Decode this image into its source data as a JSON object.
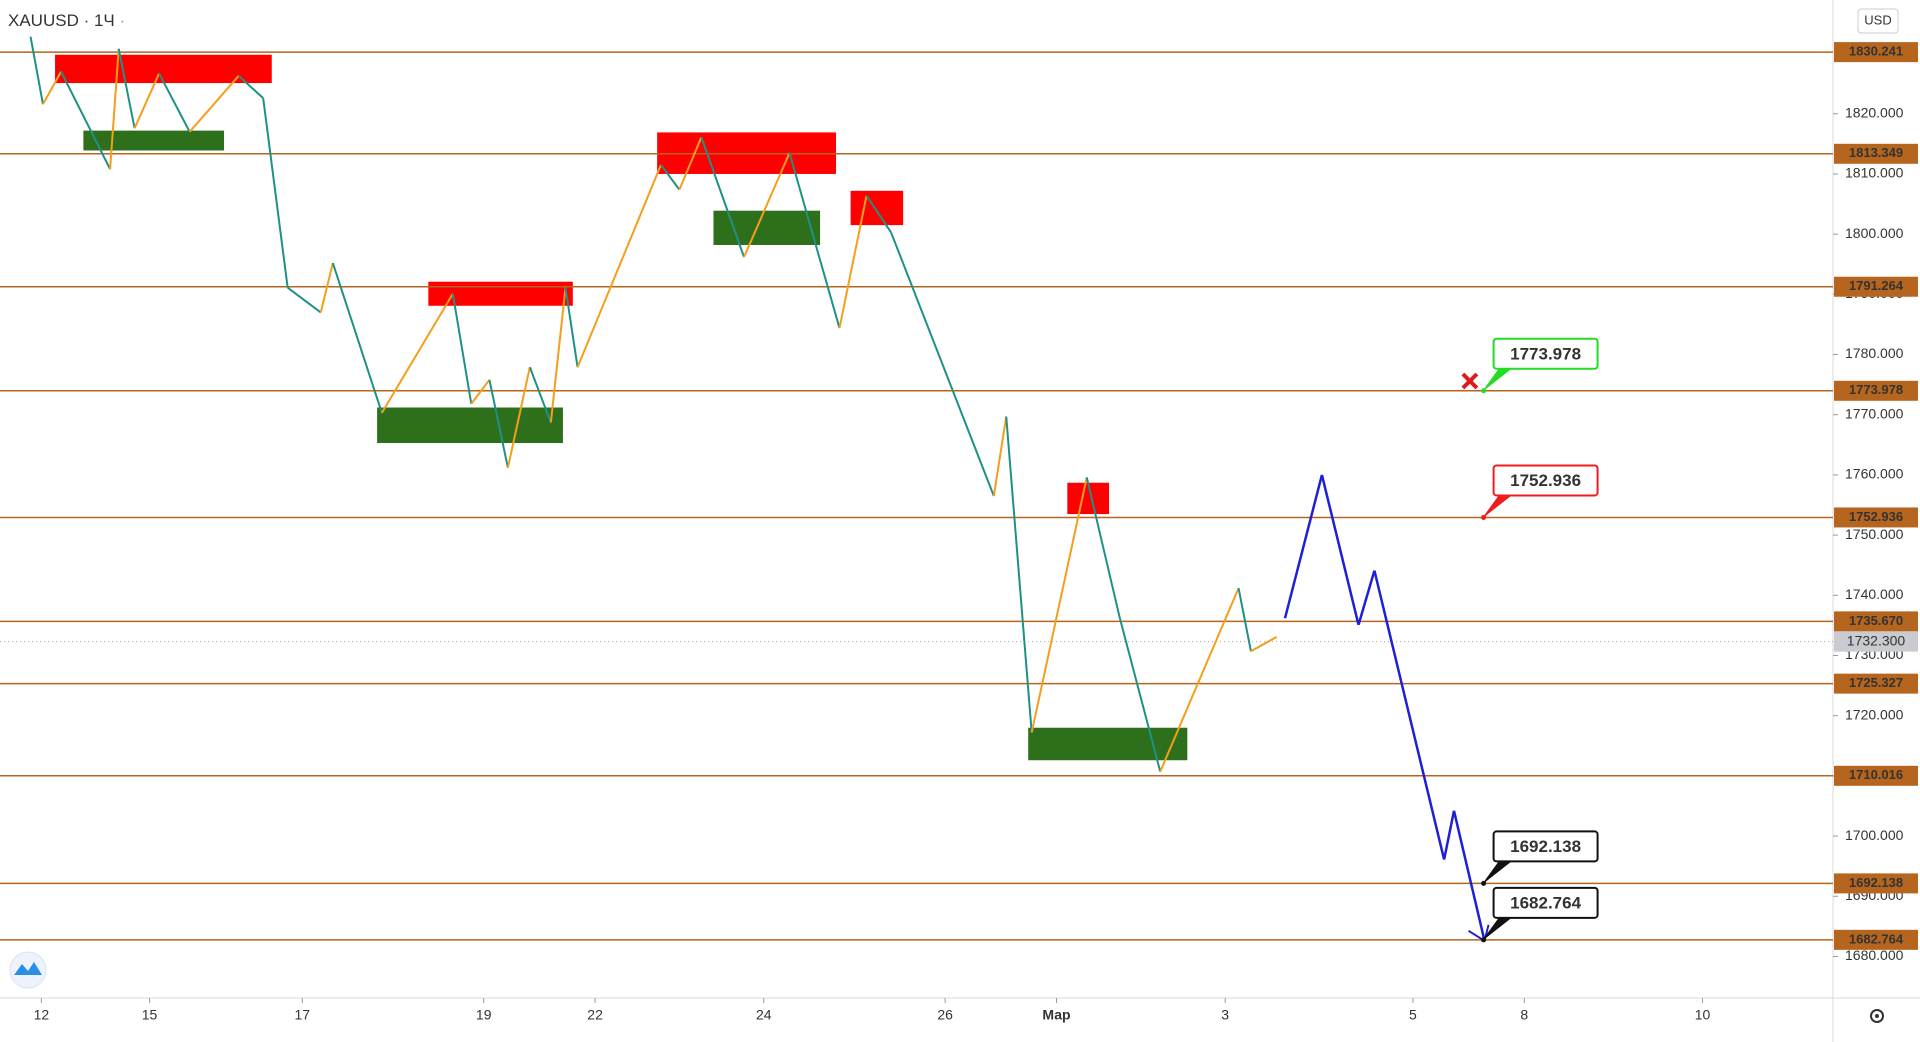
{
  "chart_data": {
    "type": "line",
    "title": "XAUUSD",
    "subtitle": "1Ч",
    "currency": "USD",
    "xlim": [
      0,
      576
    ],
    "ylim": [
      1673.1,
      1838.9
    ],
    "xticks": [
      {
        "value": 13,
        "label": "12"
      },
      {
        "value": 47,
        "label": "15"
      },
      {
        "value": 95,
        "label": "17"
      },
      {
        "value": 152,
        "label": "19"
      },
      {
        "value": 187,
        "label": "22"
      },
      {
        "value": 240,
        "label": "24"
      },
      {
        "value": 297,
        "label": "26"
      },
      {
        "value": 332,
        "label": "Мар"
      },
      {
        "value": 385,
        "label": "3"
      },
      {
        "value": 444,
        "label": "5"
      },
      {
        "value": 479,
        "label": "8"
      },
      {
        "value": 535,
        "label": "10"
      }
    ],
    "yticks": [
      {
        "value": 1680,
        "label": "1680.000"
      },
      {
        "value": 1690,
        "label": "1690.000"
      },
      {
        "value": 1700,
        "label": "1700.000"
      },
      {
        "value": 1710,
        "label": "1710.000"
      },
      {
        "value": 1720,
        "label": "1720.000"
      },
      {
        "value": 1730,
        "label": "1730.000"
      },
      {
        "value": 1740,
        "label": "1740.000"
      },
      {
        "value": 1750,
        "label": "1750.000"
      },
      {
        "value": 1760,
        "label": "1760.000"
      },
      {
        "value": 1770,
        "label": "1770.000"
      },
      {
        "value": 1780,
        "label": "1780.000"
      },
      {
        "value": 1790,
        "label": "1790.000"
      },
      {
        "value": 1800,
        "label": "1800.000"
      },
      {
        "value": 1810,
        "label": "1810.000"
      },
      {
        "value": 1820,
        "label": "1820.000"
      }
    ],
    "series": [
      {
        "color": "#f59e1b",
        "down_color": "#1e9187",
        "x": [
          9.6,
          13.5,
          19.2,
          34.6,
          37.3,
          42.3,
          50,
          59.6,
          75,
          82.7,
          90.4,
          100.8,
          104.6,
          120,
          142.3,
          148.1,
          153.8,
          159.6,
          166.5,
          173.1,
          177.7,
          181.5,
          207.7,
          213.5,
          220.4,
          233.8,
          248.1,
          263.8,
          272.3,
          280,
          312.3,
          316.2,
          324.2,
          341.5,
          351.9,
          364.6,
          389.2,
          393.1,
          401.2
        ],
        "values": [
          1832.8,
          1821.6,
          1827,
          1810.8,
          1830.8,
          1817.6,
          1826.7,
          1817,
          1826.3,
          1822.6,
          1791.1,
          1787,
          1795.2,
          1770.3,
          1790.1,
          1771.8,
          1775.8,
          1761.2,
          1777.9,
          1768.7,
          1791.1,
          1777.9,
          1811.5,
          1807.4,
          1816.1,
          1796.2,
          1813.5,
          1784.4,
          1806.4,
          1800.3,
          1756.5,
          1769.7,
          1717.2,
          1759.6,
          1736.2,
          1710.7,
          1741.2,
          1730.7,
          1733.1
        ]
      },
      {
        "color": "#1f1fd6",
        "x": [
          403.8,
          415.4,
          426.9,
          431.9,
          453.8,
          456.9,
          466.5
        ],
        "values": [
          1736.2,
          1760,
          1735.1,
          1744.1,
          1696.1,
          1704.2,
          1682.6
        ]
      }
    ],
    "zones": [
      {
        "x0": 17.3,
        "x1": 85.4,
        "top": 1829.8,
        "bottom": 1825.1,
        "color": "#ff0000"
      },
      {
        "x0": 134.6,
        "x1": 180,
        "top": 1792.1,
        "bottom": 1788.1,
        "color": "#ff0000"
      },
      {
        "x0": 206.5,
        "x1": 262.7,
        "top": 1816.9,
        "bottom": 1810,
        "color": "#ff0000"
      },
      {
        "x0": 267.3,
        "x1": 283.8,
        "top": 1807.2,
        "bottom": 1801.5,
        "color": "#ff0000"
      },
      {
        "x0": 335.4,
        "x1": 348.5,
        "top": 1758.7,
        "bottom": 1753.5,
        "color": "#ff0000"
      },
      {
        "x0": 26.2,
        "x1": 70.4,
        "top": 1817.2,
        "bottom": 1813.9,
        "color": "#2e6f1c"
      },
      {
        "x0": 118.5,
        "x1": 176.9,
        "top": 1771.2,
        "bottom": 1765.3,
        "color": "#2e6f1c"
      },
      {
        "x0": 224.2,
        "x1": 257.7,
        "top": 1803.9,
        "bottom": 1798.2,
        "color": "#2e6f1c"
      },
      {
        "x0": 323.1,
        "x1": 373.1,
        "top": 1718,
        "bottom": 1712.6,
        "color": "#2e6f1c"
      }
    ],
    "level_color": "#b5651d",
    "levels": [
      {
        "value": 1830.241,
        "label": "1830.241"
      },
      {
        "value": 1813.349,
        "label": "1813.349"
      },
      {
        "value": 1791.264,
        "label": "1791.264"
      },
      {
        "value": 1773.978,
        "label": "1773.978"
      },
      {
        "value": 1752.936,
        "label": "1752.936"
      },
      {
        "value": 1735.67,
        "label": "1735.670"
      },
      {
        "value": 1725.327,
        "label": "1725.327"
      },
      {
        "value": 1710.016,
        "label": "1710.016"
      },
      {
        "value": 1692.138,
        "label": "1692.138"
      },
      {
        "value": 1682.764,
        "label": "1682.764"
      }
    ],
    "current_price": {
      "value": 1732.3,
      "label": "1732.300"
    },
    "callouts": [
      {
        "x": 466.2,
        "value": 1773.978,
        "label": "1773.978",
        "color": "#22dd22"
      },
      {
        "x": 466.2,
        "value": 1752.936,
        "label": "1752.936",
        "color": "#ee1c1c"
      },
      {
        "x": 466.2,
        "value": 1692.138,
        "label": "1692.138",
        "color": "#111111"
      },
      {
        "x": 466.2,
        "value": 1682.764,
        "label": "1682.764",
        "color": "#111111"
      }
    ],
    "marker": {
      "x": 461.9,
      "value": 1775.6,
      "color": "#e01b1b"
    }
  }
}
